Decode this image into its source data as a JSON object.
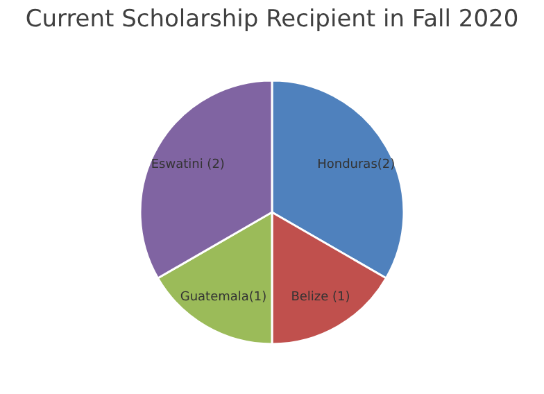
{
  "chart_data": {
    "type": "pie",
    "title": "Current Scholarship Recipient in Fall 2020",
    "categories": [
      "Honduras(2)",
      "Belize (1)",
      "Guatemala(1)",
      "Eswatini (2)"
    ],
    "values": [
      2,
      1,
      1,
      2
    ],
    "colors": [
      "#4f81bd",
      "#c0504d",
      "#9bbb59",
      "#8064a2"
    ],
    "legend": false
  }
}
